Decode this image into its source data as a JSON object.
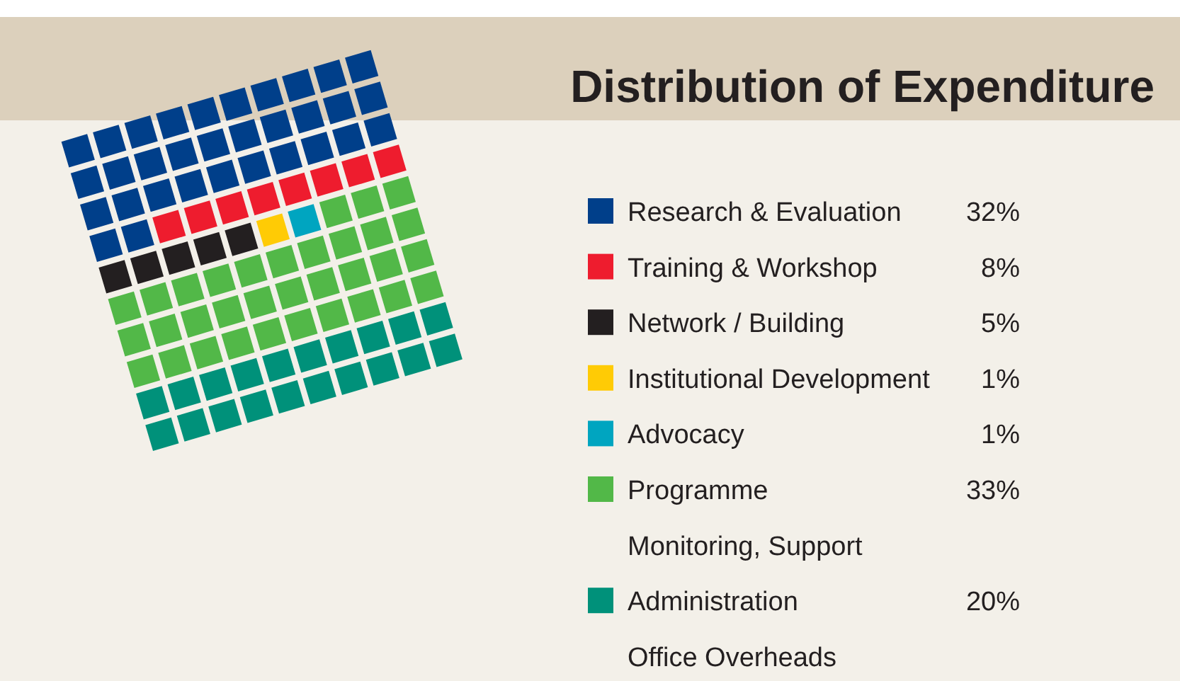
{
  "chart_data": {
    "type": "other",
    "title": "Distribution of Expenditure",
    "categories": [
      "Research & Evaluation",
      "Training & Workshop",
      "Network / Building",
      "Institutional Development",
      "Advocacy",
      "Programme\nMonitoring, Support",
      "Administration\nOffice Overheads"
    ],
    "values": [
      32,
      8,
      5,
      1,
      1,
      33,
      20
    ],
    "colors": [
      "#003f8a",
      "#ee1c2e",
      "#231f20",
      "#ffcb05",
      "#00a5c0",
      "#52b848",
      "#00917a"
    ],
    "value_labels": [
      "32%",
      "8%",
      "5%",
      "1%",
      "1%",
      "33%",
      "20%"
    ]
  }
}
